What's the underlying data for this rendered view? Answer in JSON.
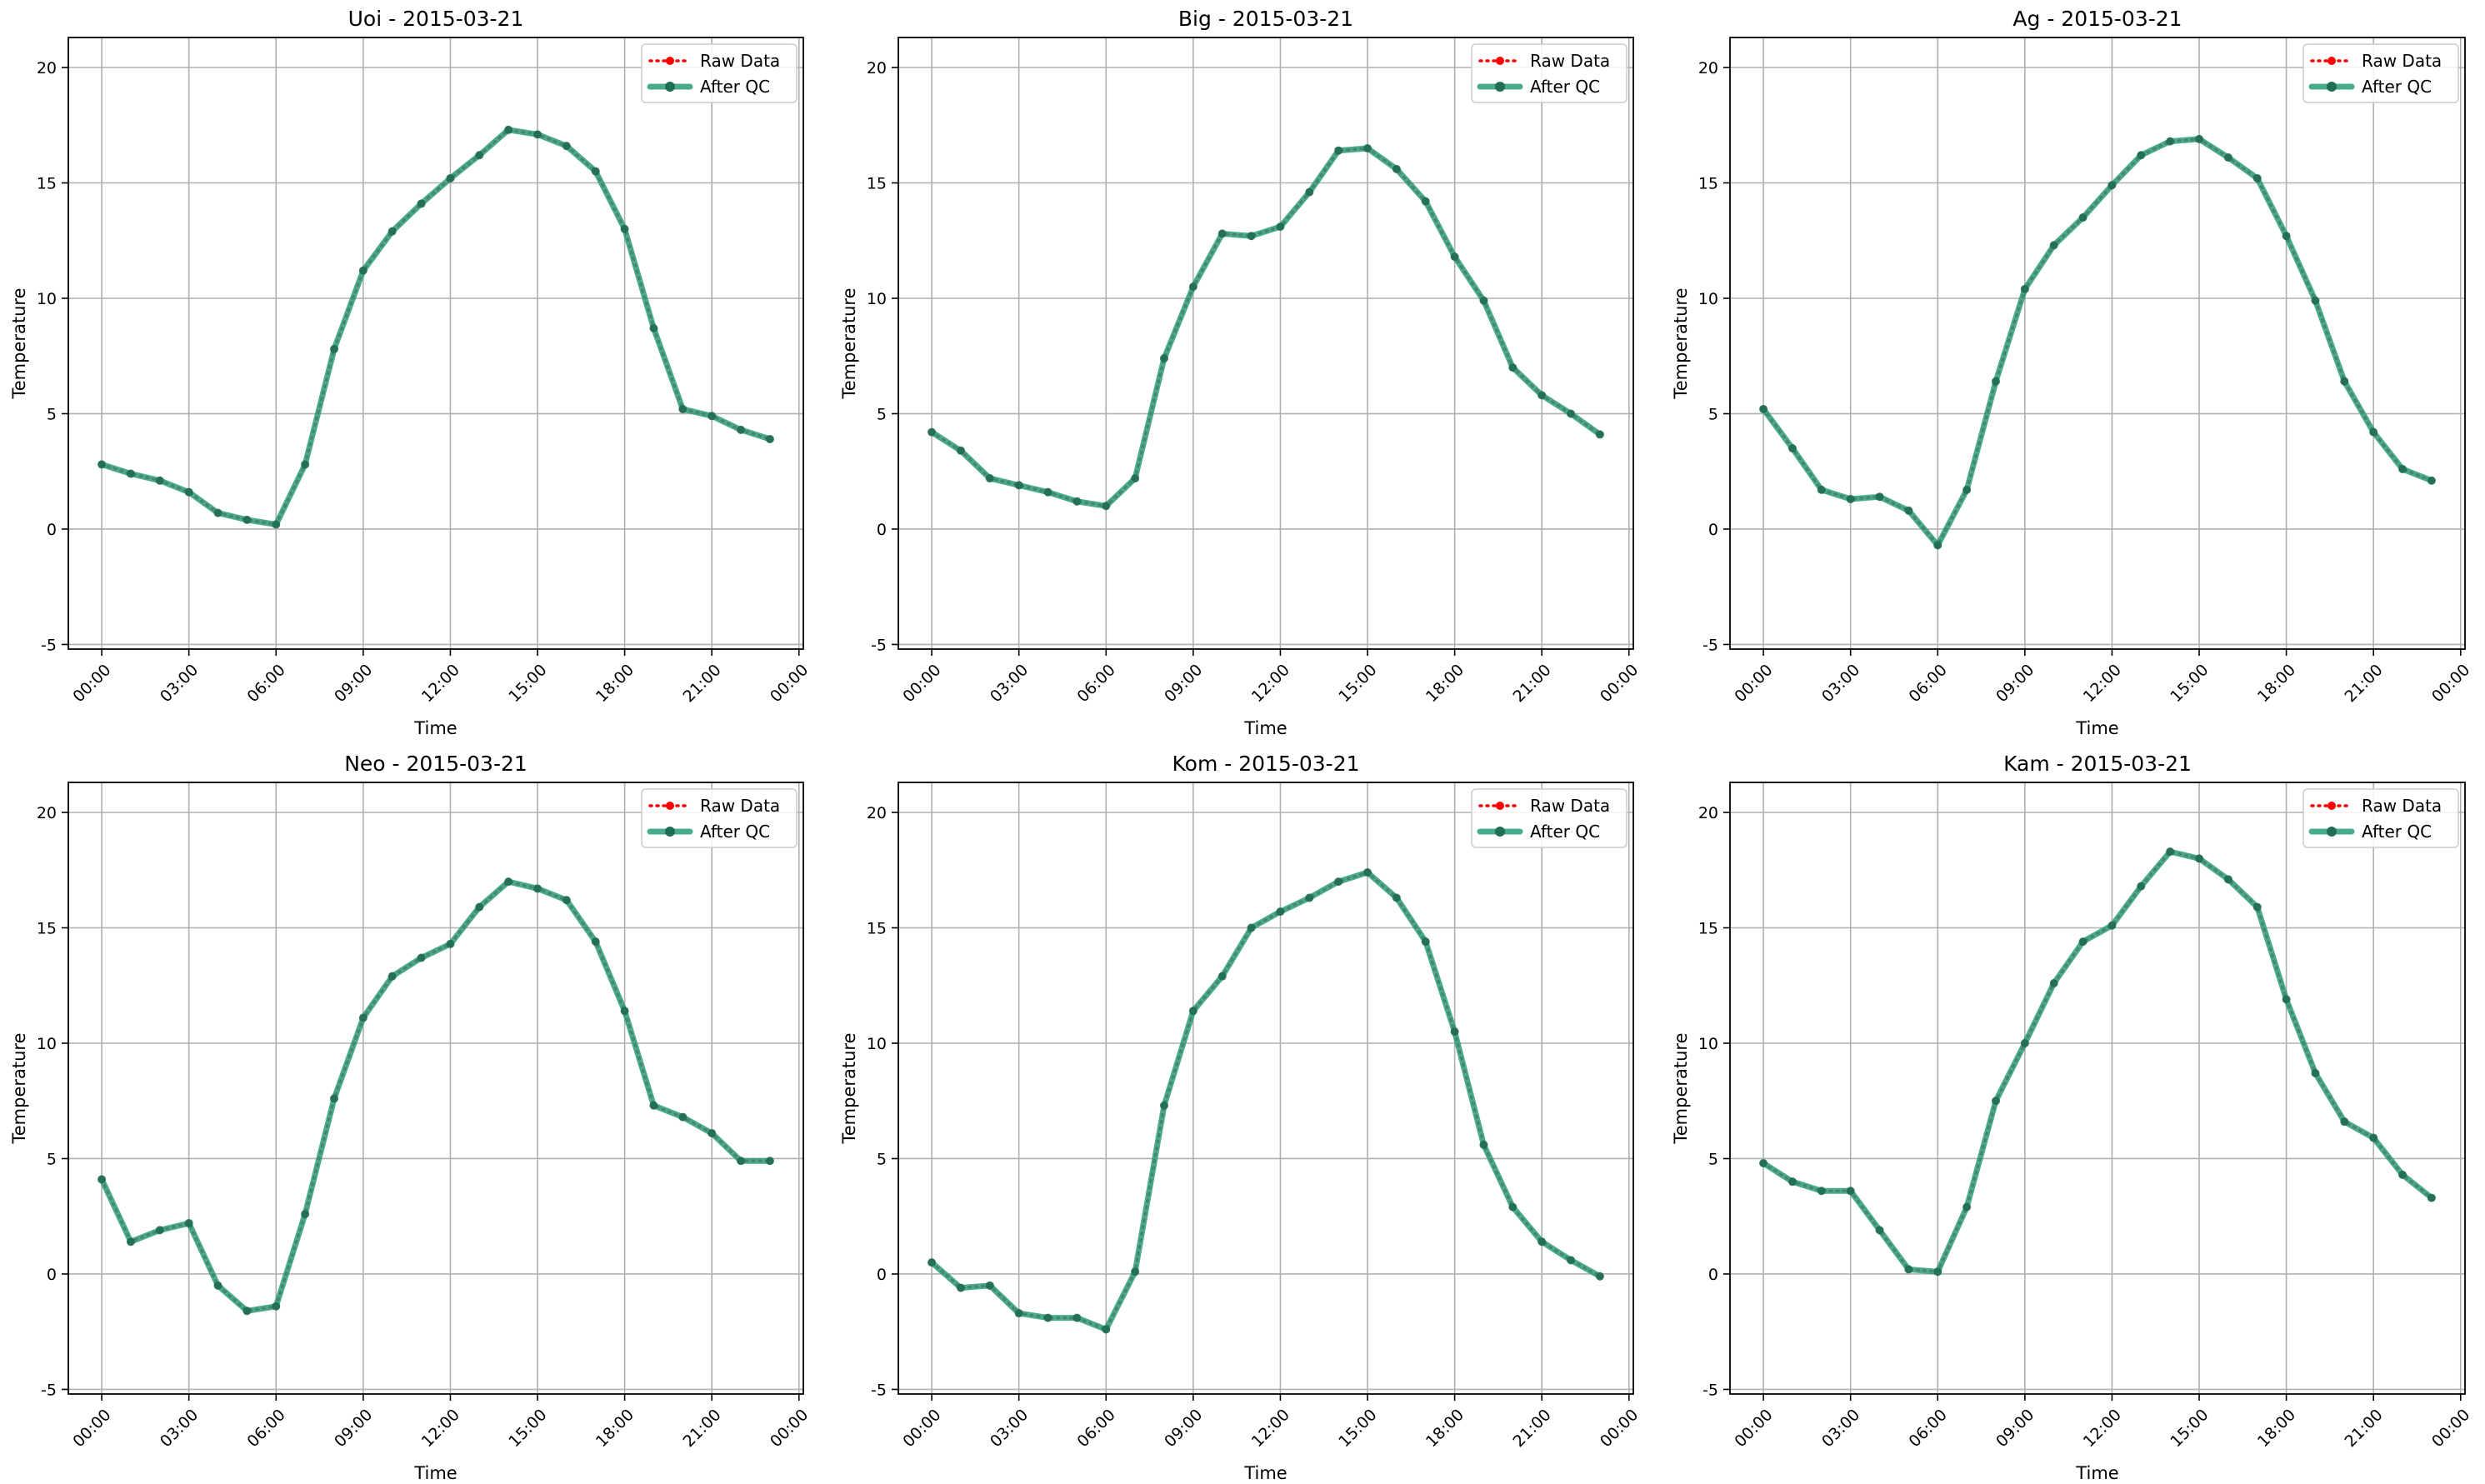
{
  "chart_data": [
    {
      "type": "line",
      "title": "Uoi - 2015-03-21",
      "xlabel": "Time",
      "ylabel": "Temperature",
      "x": [
        "00:00",
        "01:00",
        "02:00",
        "03:00",
        "04:00",
        "05:00",
        "06:00",
        "07:00",
        "08:00",
        "09:00",
        "10:00",
        "11:00",
        "12:00",
        "13:00",
        "14:00",
        "15:00",
        "16:00",
        "17:00",
        "18:00",
        "19:00",
        "20:00",
        "21:00",
        "22:00",
        "23:00"
      ],
      "x_ticks": [
        "00:00",
        "03:00",
        "06:00",
        "09:00",
        "12:00",
        "15:00",
        "18:00",
        "21:00",
        "00:00"
      ],
      "y_ticks": [
        -5,
        0,
        5,
        10,
        15,
        20
      ],
      "ylim": [
        -5.2,
        21.3
      ],
      "grid": true,
      "legend_position": "upper-right",
      "series": [
        {
          "name": "Raw Data",
          "color": "#ff0000",
          "style": "dotted",
          "values": [
            2.8,
            2.4,
            2.1,
            1.6,
            0.7,
            0.4,
            0.2,
            2.8,
            7.8,
            11.2,
            12.9,
            14.1,
            15.2,
            16.2,
            17.3,
            17.1,
            16.6,
            15.5,
            13.0,
            8.7,
            5.2,
            4.9,
            4.3,
            3.9
          ]
        },
        {
          "name": "After QC",
          "color": "#2a9d7a",
          "style": "solid",
          "values": [
            2.8,
            2.4,
            2.1,
            1.6,
            0.7,
            0.4,
            0.2,
            2.8,
            7.8,
            11.2,
            12.9,
            14.1,
            15.2,
            16.2,
            17.3,
            17.1,
            16.6,
            15.5,
            13.0,
            8.7,
            5.2,
            4.9,
            4.3,
            3.9
          ]
        }
      ]
    },
    {
      "type": "line",
      "title": "Big - 2015-03-21",
      "xlabel": "Time",
      "ylabel": "Temperature",
      "x": [
        "00:00",
        "01:00",
        "02:00",
        "03:00",
        "04:00",
        "05:00",
        "06:00",
        "07:00",
        "08:00",
        "09:00",
        "10:00",
        "11:00",
        "12:00",
        "13:00",
        "14:00",
        "15:00",
        "16:00",
        "17:00",
        "18:00",
        "19:00",
        "20:00",
        "21:00",
        "22:00",
        "23:00"
      ],
      "x_ticks": [
        "00:00",
        "03:00",
        "06:00",
        "09:00",
        "12:00",
        "15:00",
        "18:00",
        "21:00",
        "00:00"
      ],
      "y_ticks": [
        -5,
        0,
        5,
        10,
        15,
        20
      ],
      "ylim": [
        -5.2,
        21.3
      ],
      "grid": true,
      "legend_position": "upper-right",
      "series": [
        {
          "name": "Raw Data",
          "color": "#ff0000",
          "style": "dotted",
          "values": [
            4.2,
            3.4,
            2.2,
            1.9,
            1.6,
            1.2,
            1.0,
            2.2,
            7.4,
            10.5,
            12.8,
            12.7,
            13.1,
            14.6,
            16.4,
            16.5,
            15.6,
            14.2,
            11.8,
            9.9,
            7.0,
            5.8,
            5.0,
            4.1
          ]
        },
        {
          "name": "After QC",
          "color": "#2a9d7a",
          "style": "solid",
          "values": [
            4.2,
            3.4,
            2.2,
            1.9,
            1.6,
            1.2,
            1.0,
            2.2,
            7.4,
            10.5,
            12.8,
            12.7,
            13.1,
            14.6,
            16.4,
            16.5,
            15.6,
            14.2,
            11.8,
            9.9,
            7.0,
            5.8,
            5.0,
            4.1
          ]
        }
      ]
    },
    {
      "type": "line",
      "title": "Ag - 2015-03-21",
      "xlabel": "Time",
      "ylabel": "Temperature",
      "x": [
        "00:00",
        "01:00",
        "02:00",
        "03:00",
        "04:00",
        "05:00",
        "06:00",
        "07:00",
        "08:00",
        "09:00",
        "10:00",
        "11:00",
        "12:00",
        "13:00",
        "14:00",
        "15:00",
        "16:00",
        "17:00",
        "18:00",
        "19:00",
        "20:00",
        "21:00",
        "22:00",
        "23:00"
      ],
      "x_ticks": [
        "00:00",
        "03:00",
        "06:00",
        "09:00",
        "12:00",
        "15:00",
        "18:00",
        "21:00",
        "00:00"
      ],
      "y_ticks": [
        -5,
        0,
        5,
        10,
        15,
        20
      ],
      "ylim": [
        -5.2,
        21.3
      ],
      "grid": true,
      "legend_position": "upper-right",
      "series": [
        {
          "name": "Raw Data",
          "color": "#ff0000",
          "style": "dotted",
          "values": [
            5.2,
            3.5,
            1.7,
            1.3,
            1.4,
            0.8,
            -0.7,
            1.7,
            6.4,
            10.4,
            12.3,
            13.5,
            14.9,
            16.2,
            16.8,
            16.9,
            16.1,
            15.2,
            12.7,
            9.9,
            6.4,
            4.2,
            2.6,
            2.1
          ]
        },
        {
          "name": "After QC",
          "color": "#2a9d7a",
          "style": "solid",
          "values": [
            5.2,
            3.5,
            1.7,
            1.3,
            1.4,
            0.8,
            -0.7,
            1.7,
            6.4,
            10.4,
            12.3,
            13.5,
            14.9,
            16.2,
            16.8,
            16.9,
            16.1,
            15.2,
            12.7,
            9.9,
            6.4,
            4.2,
            2.6,
            2.1
          ]
        }
      ]
    },
    {
      "type": "line",
      "title": "Neo - 2015-03-21",
      "xlabel": "Time",
      "ylabel": "Temperature",
      "x": [
        "00:00",
        "01:00",
        "02:00",
        "03:00",
        "04:00",
        "05:00",
        "06:00",
        "07:00",
        "08:00",
        "09:00",
        "10:00",
        "11:00",
        "12:00",
        "13:00",
        "14:00",
        "15:00",
        "16:00",
        "17:00",
        "18:00",
        "19:00",
        "20:00",
        "21:00",
        "22:00",
        "23:00"
      ],
      "x_ticks": [
        "00:00",
        "03:00",
        "06:00",
        "09:00",
        "12:00",
        "15:00",
        "18:00",
        "21:00",
        "00:00"
      ],
      "y_ticks": [
        -5,
        0,
        5,
        10,
        15,
        20
      ],
      "ylim": [
        -5.2,
        21.3
      ],
      "grid": true,
      "legend_position": "upper-right",
      "series": [
        {
          "name": "Raw Data",
          "color": "#ff0000",
          "style": "dotted",
          "values": [
            4.1,
            1.4,
            1.9,
            2.2,
            -0.5,
            -1.6,
            -1.4,
            2.6,
            7.6,
            11.1,
            12.9,
            13.7,
            14.3,
            15.9,
            17.0,
            16.7,
            16.2,
            14.4,
            11.4,
            7.3,
            6.8,
            6.1,
            4.9,
            4.9
          ]
        },
        {
          "name": "After QC",
          "color": "#2a9d7a",
          "style": "solid",
          "values": [
            4.1,
            1.4,
            1.9,
            2.2,
            -0.5,
            -1.6,
            -1.4,
            2.6,
            7.6,
            11.1,
            12.9,
            13.7,
            14.3,
            15.9,
            17.0,
            16.7,
            16.2,
            14.4,
            11.4,
            7.3,
            6.8,
            6.1,
            4.9,
            4.9
          ]
        }
      ]
    },
    {
      "type": "line",
      "title": "Kom - 2015-03-21",
      "xlabel": "Time",
      "ylabel": "Temperature",
      "x": [
        "00:00",
        "01:00",
        "02:00",
        "03:00",
        "04:00",
        "05:00",
        "06:00",
        "07:00",
        "08:00",
        "09:00",
        "10:00",
        "11:00",
        "12:00",
        "13:00",
        "14:00",
        "15:00",
        "16:00",
        "17:00",
        "18:00",
        "19:00",
        "20:00",
        "21:00",
        "22:00",
        "23:00"
      ],
      "x_ticks": [
        "00:00",
        "03:00",
        "06:00",
        "09:00",
        "12:00",
        "15:00",
        "18:00",
        "21:00",
        "00:00"
      ],
      "y_ticks": [
        -5,
        0,
        5,
        10,
        15,
        20
      ],
      "ylim": [
        -5.2,
        21.3
      ],
      "grid": true,
      "legend_position": "upper-right",
      "series": [
        {
          "name": "Raw Data",
          "color": "#ff0000",
          "style": "dotted",
          "values": [
            0.5,
            -0.6,
            -0.5,
            -1.7,
            -1.9,
            -1.9,
            -2.4,
            0.1,
            7.3,
            11.4,
            12.9,
            15.0,
            15.7,
            16.3,
            17.0,
            17.4,
            16.3,
            14.4,
            10.5,
            5.6,
            2.9,
            1.4,
            0.6,
            -0.1
          ]
        },
        {
          "name": "After QC",
          "color": "#2a9d7a",
          "style": "solid",
          "values": [
            0.5,
            -0.6,
            -0.5,
            -1.7,
            -1.9,
            -1.9,
            -2.4,
            0.1,
            7.3,
            11.4,
            12.9,
            15.0,
            15.7,
            16.3,
            17.0,
            17.4,
            16.3,
            14.4,
            10.5,
            5.6,
            2.9,
            1.4,
            0.6,
            -0.1
          ]
        }
      ]
    },
    {
      "type": "line",
      "title": "Kam - 2015-03-21",
      "xlabel": "Time",
      "ylabel": "Temperature",
      "x": [
        "00:00",
        "01:00",
        "02:00",
        "03:00",
        "04:00",
        "05:00",
        "06:00",
        "07:00",
        "08:00",
        "09:00",
        "10:00",
        "11:00",
        "12:00",
        "13:00",
        "14:00",
        "15:00",
        "16:00",
        "17:00",
        "18:00",
        "19:00",
        "20:00",
        "21:00",
        "22:00",
        "23:00"
      ],
      "x_ticks": [
        "00:00",
        "03:00",
        "06:00",
        "09:00",
        "12:00",
        "15:00",
        "18:00",
        "21:00",
        "00:00"
      ],
      "y_ticks": [
        -5,
        0,
        5,
        10,
        15,
        20
      ],
      "ylim": [
        -5.2,
        21.3
      ],
      "grid": true,
      "legend_position": "upper-right",
      "series": [
        {
          "name": "Raw Data",
          "color": "#ff0000",
          "style": "dotted",
          "values": [
            4.8,
            4.0,
            3.6,
            3.6,
            1.9,
            0.2,
            0.1,
            2.9,
            7.5,
            10.0,
            12.6,
            14.4,
            15.1,
            16.8,
            18.3,
            18.0,
            17.1,
            15.9,
            11.9,
            8.7,
            6.6,
            5.9,
            4.3,
            3.3
          ]
        },
        {
          "name": "After QC",
          "color": "#2a9d7a",
          "style": "solid",
          "values": [
            4.8,
            4.0,
            3.6,
            3.6,
            1.9,
            0.2,
            0.1,
            2.9,
            7.5,
            10.0,
            12.6,
            14.4,
            15.1,
            16.8,
            18.3,
            18.0,
            17.1,
            15.9,
            11.9,
            8.7,
            6.6,
            5.9,
            4.3,
            3.3
          ]
        }
      ]
    }
  ]
}
